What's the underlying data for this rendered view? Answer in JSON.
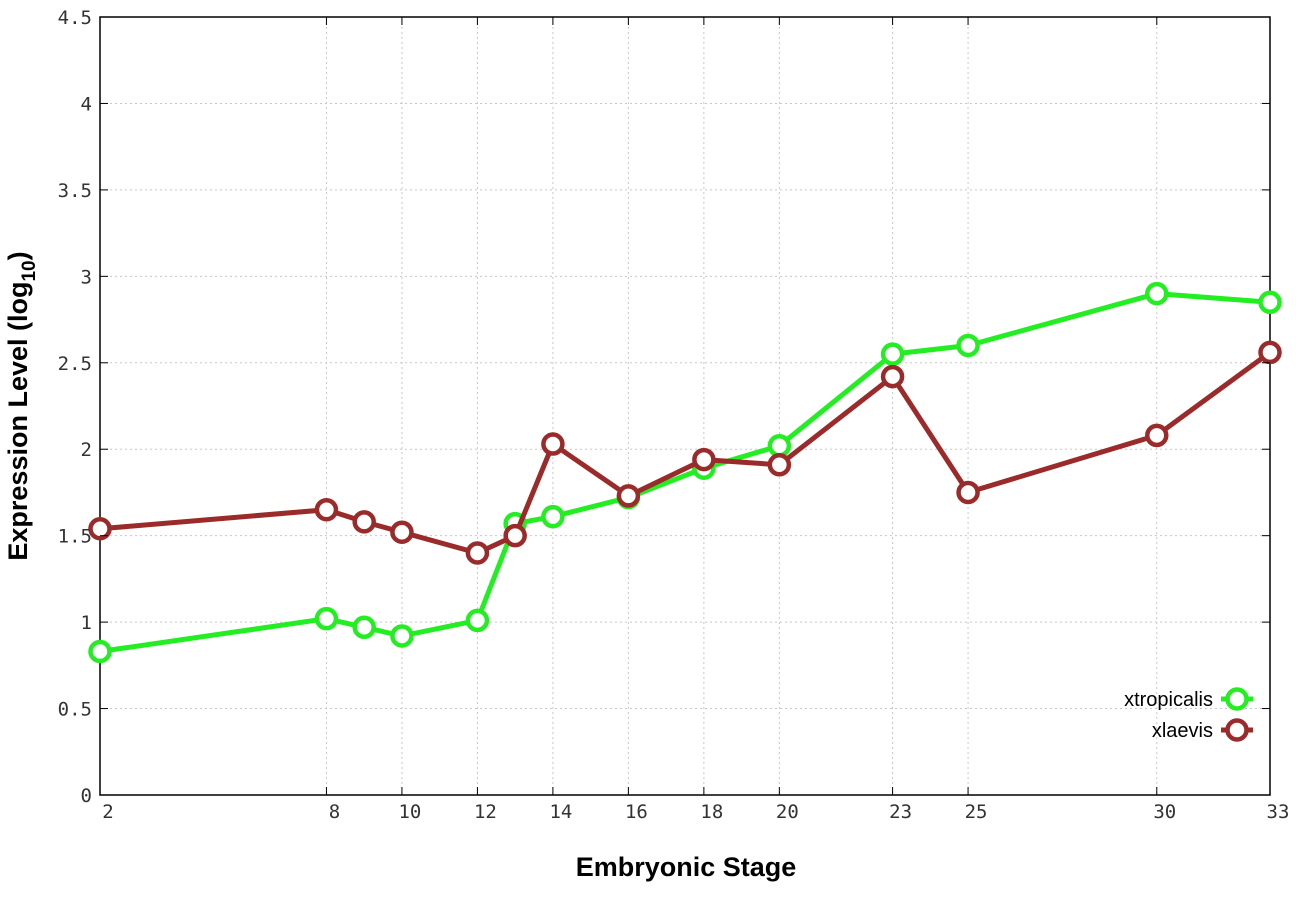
{
  "chart_data": {
    "type": "line",
    "xlabel": "Embryonic Stage",
    "ylabel_main": "Expression Level (log",
    "ylabel_sub": "10",
    "ylabel_close": ")",
    "xlim": [
      2,
      33
    ],
    "ylim": [
      0,
      4.5
    ],
    "grid": true,
    "legend_position": "bottom-right",
    "x_ticks": [
      2,
      8,
      10,
      12,
      14,
      16,
      18,
      20,
      23,
      25,
      30,
      33
    ],
    "x_tick_labels": [
      "2",
      "8",
      "10",
      "12",
      "14",
      "16",
      "18",
      "20",
      "23",
      "25",
      "30",
      "33"
    ],
    "y_ticks": [
      0,
      0.5,
      1,
      1.5,
      2,
      2.5,
      3,
      3.5,
      4,
      4.5
    ],
    "y_tick_labels": [
      "0",
      "0.5",
      "1",
      "1.5",
      "2",
      "2.5",
      "3",
      "3.5",
      "4",
      "4.5"
    ],
    "x": [
      2,
      8,
      9,
      10,
      12,
      13,
      14,
      16,
      18,
      20,
      23,
      25,
      30,
      33
    ],
    "series": [
      {
        "name": "xtropicalis",
        "color": "#22ee22",
        "values": [
          0.83,
          1.02,
          0.97,
          0.92,
          1.01,
          1.57,
          1.61,
          1.72,
          1.89,
          2.02,
          2.55,
          2.6,
          2.9,
          2.85
        ]
      },
      {
        "name": "xlaevis",
        "color": "#9b2a2a",
        "values": [
          1.54,
          1.65,
          1.58,
          1.52,
          1.4,
          1.5,
          2.03,
          1.73,
          1.94,
          1.91,
          2.42,
          1.75,
          2.08,
          2.56
        ]
      }
    ]
  }
}
